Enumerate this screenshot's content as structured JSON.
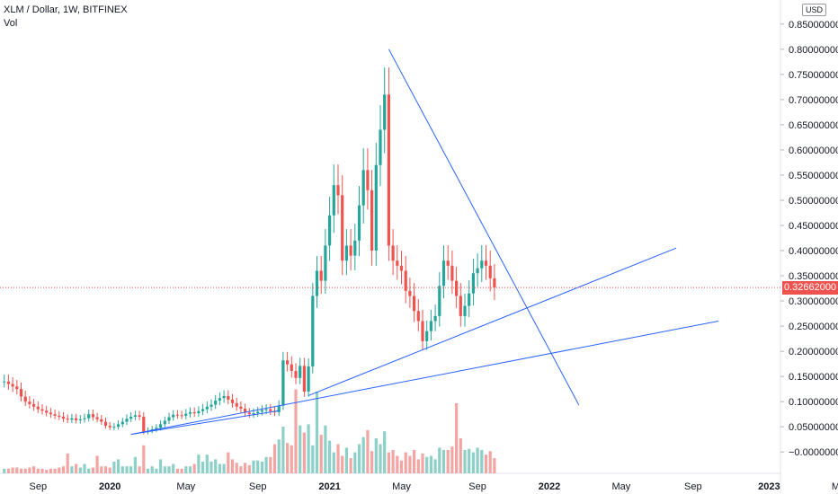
{
  "header": {
    "title": "XLM / Dollar, 1W, BITFINEX",
    "sub": "Vol",
    "currency": "USD"
  },
  "chart_data": {
    "type": "candlestick",
    "title": "XLM / Dollar, 1W, BITFINEX",
    "volume_label": "Vol",
    "currency": "USD",
    "last_price": "0.32662000",
    "colors": {
      "up": "#26a69a",
      "down": "#ef5350",
      "up_vol": "#8dd0c8",
      "down_vol": "#f3a5a3",
      "trendline": "#2962ff",
      "price_line": "#ef5350"
    },
    "y_ticks": [
      "0.85000000",
      "0.80000000",
      "0.75000000",
      "0.70000000",
      "0.65000000",
      "0.60000000",
      "0.55000000",
      "0.50000000",
      "0.45000000",
      "0.40000000",
      "0.35000000",
      "0.30000000",
      "0.25000000",
      "0.20000000",
      "0.15000000",
      "0.10000000",
      "0.05000000",
      "−0.00000000"
    ],
    "ylim": [
      -0.005,
      0.855
    ],
    "x_ticks": [
      {
        "label": "Sep",
        "week": 8,
        "bold": false
      },
      {
        "label": "2020",
        "week": 25,
        "bold": true
      },
      {
        "label": "May",
        "week": 43,
        "bold": false
      },
      {
        "label": "Sep",
        "week": 60,
        "bold": false
      },
      {
        "label": "2021",
        "week": 77,
        "bold": true
      },
      {
        "label": "May",
        "week": 94,
        "bold": false
      },
      {
        "label": "Sep",
        "week": 112,
        "bold": false
      },
      {
        "label": "2022",
        "week": 129,
        "bold": true
      },
      {
        "label": "May",
        "week": 146,
        "bold": false
      },
      {
        "label": "Sep",
        "week": 163,
        "bold": false
      },
      {
        "label": "2023",
        "week": 181,
        "bold": true
      },
      {
        "label": "May",
        "week": 198,
        "bold": false
      }
    ],
    "closes": [
      0.14,
      0.135,
      0.13,
      0.125,
      0.11,
      0.1,
      0.095,
      0.09,
      0.085,
      0.082,
      0.078,
      0.075,
      0.072,
      0.07,
      0.066,
      0.064,
      0.067,
      0.063,
      0.065,
      0.067,
      0.075,
      0.069,
      0.065,
      0.06,
      0.052,
      0.049,
      0.05,
      0.055,
      0.06,
      0.066,
      0.07,
      0.073,
      0.07,
      0.04,
      0.042,
      0.045,
      0.048,
      0.055,
      0.062,
      0.069,
      0.074,
      0.073,
      0.072,
      0.076,
      0.079,
      0.077,
      0.081,
      0.085,
      0.09,
      0.094,
      0.102,
      0.107,
      0.111,
      0.104,
      0.097,
      0.09,
      0.086,
      0.078,
      0.075,
      0.077,
      0.08,
      0.083,
      0.085,
      0.081,
      0.079,
      0.092,
      0.182,
      0.174,
      0.161,
      0.147,
      0.171,
      0.12,
      0.17,
      0.31,
      0.36,
      0.34,
      0.41,
      0.47,
      0.53,
      0.51,
      0.38,
      0.41,
      0.39,
      0.42,
      0.49,
      0.56,
      0.52,
      0.4,
      0.57,
      0.64,
      0.71,
      0.41,
      0.38,
      0.37,
      0.36,
      0.32,
      0.31,
      0.28,
      0.26,
      0.22,
      0.24,
      0.26,
      0.27,
      0.33,
      0.38,
      0.37,
      0.34,
      0.31,
      0.27,
      0.29,
      0.315,
      0.355,
      0.365,
      0.38,
      0.37,
      0.345,
      0.3266
    ],
    "volumes": [
      0.004,
      0.004,
      0.005,
      0.005,
      0.004,
      0.004,
      0.005,
      0.006,
      0.004,
      0.004,
      0.003,
      0.004,
      0.004,
      0.005,
      0.006,
      0.017,
      0.006,
      0.008,
      0.005,
      0.008,
      0.004,
      0.005,
      0.015,
      0.006,
      0.006,
      0.005,
      0.01,
      0.012,
      0.006,
      0.006,
      0.006,
      0.014,
      0.006,
      0.024,
      0.004,
      0.006,
      0.004,
      0.012,
      0.006,
      0.006,
      0.008,
      0.004,
      0.004,
      0.006,
      0.006,
      0.008,
      0.016,
      0.01,
      0.016,
      0.01,
      0.012,
      0.008,
      0.008,
      0.018,
      0.012,
      0.009,
      0.006,
      0.009,
      0.007,
      0.011,
      0.011,
      0.01,
      0.014,
      0.014,
      0.025,
      0.029,
      0.04,
      0.026,
      0.024,
      0.072,
      0.041,
      0.035,
      0.042,
      0.024,
      0.07,
      0.033,
      0.041,
      0.028,
      0.018,
      0.025,
      0.015,
      0.022,
      0.013,
      0.018,
      0.025,
      0.031,
      0.037,
      0.019,
      0.03,
      0.025,
      0.036,
      0.018,
      0.02,
      0.015,
      0.011,
      0.018,
      0.015,
      0.02,
      0.012,
      0.017,
      0.014,
      0.015,
      0.012,
      0.022,
      0.02,
      0.02,
      0.023,
      0.06,
      0.03,
      0.02,
      0.021,
      0.018,
      0.022,
      0.02,
      0.016,
      0.019,
      0.013
    ],
    "trendlines": [
      {
        "x1": 30,
        "y1": 0.035,
        "x2": 65,
        "y2": 0.082
      },
      {
        "x1": 30,
        "y1": 0.035,
        "x2": 169,
        "y2": 0.26
      },
      {
        "x1": 72,
        "y1": 0.112,
        "x2": 159,
        "y2": 0.405
      },
      {
        "x1": 91,
        "y1": 0.8,
        "x2": 136,
        "y2": 0.093
      }
    ]
  }
}
